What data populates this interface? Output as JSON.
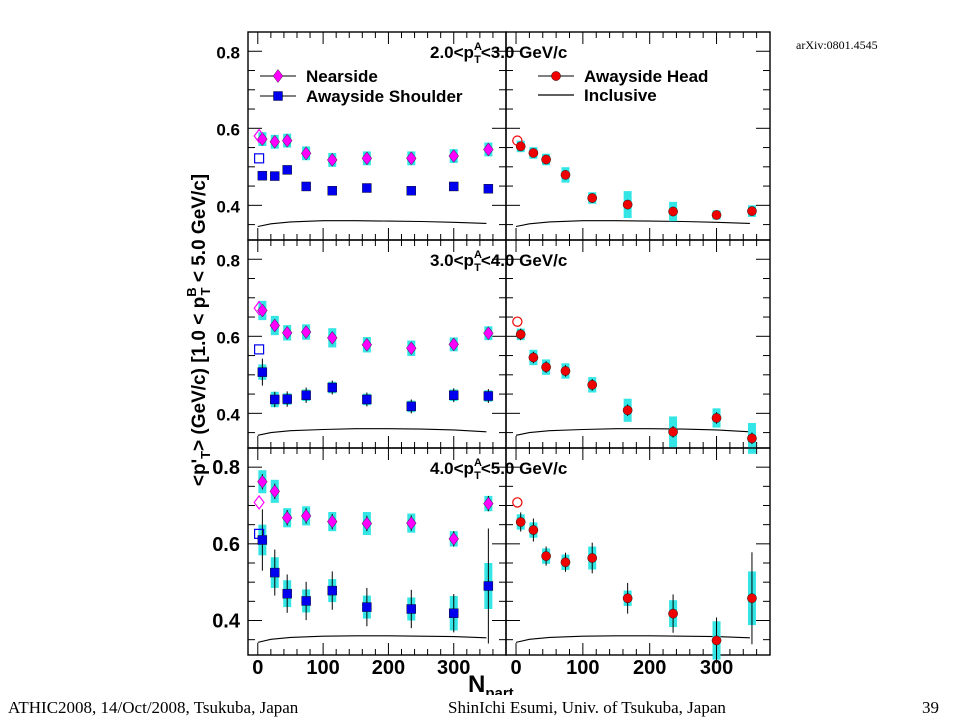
{
  "footer": {
    "left": "ATHIC2008, 14/Oct/2008, Tsukuba, Japan",
    "center": "ShinIchi Esumi, Univ. of Tsukuba, Japan",
    "page": "39"
  },
  "reference": "arXiv:0801.4545",
  "colors": {
    "nearside": "#ff00ff",
    "awayside_shoulder": "#0000ee",
    "awayside_head": "#ee0000",
    "systematic_band": "#33e5e5",
    "inclusive": "#000000"
  },
  "chart_data": {
    "type": "scatter",
    "ylabel": "<p'T> (GeV/c) [1.0 < pBT < 5.0 GeV/c]",
    "xlabel": "Npart",
    "xlim": [
      -15,
      380
    ],
    "x_ticks": [
      0,
      100,
      200,
      300
    ],
    "legend": {
      "left": [
        "Nearside",
        "Awayside Shoulder"
      ],
      "right": [
        "Awayside Head",
        "Inclusive"
      ]
    },
    "panels": [
      {
        "label": "2.0<pAT<3.0 GeV/c",
        "ylim": [
          0.31,
          0.85
        ],
        "y_ticks": [
          0.4,
          0.6,
          0.8
        ],
        "series": [
          {
            "name": "Nearside",
            "open": {
              "x": 2,
              "y": 0.58
            },
            "x": [
              7,
              26,
              45,
              74,
              114,
              167,
              235,
              300,
              353
            ],
            "y": [
              0.572,
              0.565,
              0.568,
              0.535,
              0.518,
              0.522,
              0.522,
              0.528,
              0.545
            ],
            "err": [
              0.012,
              0.012,
              0.012,
              0.012,
              0.012,
              0.012,
              0.012,
              0.012,
              0.012
            ],
            "sys": [
              0.018,
              0.018,
              0.018,
              0.018,
              0.018,
              0.018,
              0.018,
              0.018,
              0.018
            ]
          },
          {
            "name": "Awayside Shoulder",
            "open": {
              "x": 2,
              "y": 0.522
            },
            "x": [
              7,
              26,
              45,
              74,
              114,
              167,
              235,
              300,
              353
            ],
            "y": [
              0.477,
              0.476,
              0.492,
              0.449,
              0.438,
              0.445,
              0.438,
              0.449,
              0.443
            ],
            "err": [
              0.008,
              0.008,
              0.008,
              0.008,
              0.008,
              0.008,
              0.008,
              0.008,
              0.008
            ],
            "sys": [
              0.01,
              0.01,
              0.01,
              0.01,
              0.01,
              0.01,
              0.01,
              0.01,
              0.01
            ]
          },
          {
            "name": "Awayside Head",
            "open": {
              "x": 2,
              "y": 0.568
            },
            "x": [
              7,
              26,
              45,
              74,
              114,
              167,
              235,
              300,
              353
            ],
            "y": [
              0.553,
              0.536,
              0.519,
              0.479,
              0.419,
              0.402,
              0.384,
              0.375,
              0.385
            ],
            "err": [
              0.01,
              0.01,
              0.01,
              0.01,
              0.012,
              0.012,
              0.012,
              0.01,
              0.01
            ],
            "sys": [
              0.015,
              0.015,
              0.015,
              0.02,
              0.015,
              0.035,
              0.025,
              0.012,
              0.015
            ]
          }
        ],
        "inclusive": {
          "x": [
            0,
            20,
            50,
            100,
            150,
            200,
            250,
            300,
            350
          ],
          "y": [
            0.345,
            0.352,
            0.357,
            0.36,
            0.36,
            0.359,
            0.358,
            0.356,
            0.353
          ]
        }
      },
      {
        "label": "3.0<pAT<4.0 GeV/c",
        "ylim": [
          0.31,
          0.85
        ],
        "y_ticks": [
          0.4,
          0.6,
          0.8
        ],
        "series": [
          {
            "name": "Nearside",
            "open": {
              "x": 2,
              "y": 0.673
            },
            "x": [
              7,
              26,
              45,
              74,
              114,
              167,
              235,
              300,
              353
            ],
            "y": [
              0.667,
              0.628,
              0.609,
              0.611,
              0.596,
              0.578,
              0.569,
              0.579,
              0.608
            ],
            "err": [
              0.012,
              0.012,
              0.012,
              0.012,
              0.012,
              0.012,
              0.012,
              0.012,
              0.012
            ],
            "sys": [
              0.025,
              0.025,
              0.02,
              0.02,
              0.025,
              0.02,
              0.02,
              0.018,
              0.018
            ]
          },
          {
            "name": "Awayside Shoulder",
            "open": {
              "x": 2,
              "y": 0.566
            },
            "x": [
              7,
              26,
              45,
              74,
              114,
              167,
              235,
              300,
              353
            ],
            "y": [
              0.507,
              0.436,
              0.437,
              0.447,
              0.467,
              0.436,
              0.418,
              0.447,
              0.445
            ],
            "err": [
              0.035,
              0.02,
              0.02,
              0.02,
              0.018,
              0.018,
              0.018,
              0.018,
              0.018
            ],
            "sys": [
              0.02,
              0.02,
              0.015,
              0.015,
              0.015,
              0.015,
              0.015,
              0.015,
              0.015
            ]
          },
          {
            "name": "Awayside Head",
            "open": {
              "x": 2,
              "y": 0.638
            },
            "x": [
              7,
              26,
              45,
              74,
              114,
              167,
              235,
              300,
              353
            ],
            "y": [
              0.605,
              0.545,
              0.52,
              0.51,
              0.474,
              0.408,
              0.352,
              0.388,
              0.335
            ],
            "err": [
              0.015,
              0.015,
              0.015,
              0.015,
              0.015,
              0.015,
              0.015,
              0.015,
              0.015
            ],
            "sys": [
              0.015,
              0.02,
              0.02,
              0.02,
              0.02,
              0.03,
              0.04,
              0.025,
              0.04
            ]
          }
        ],
        "inclusive": {
          "x": [
            0,
            20,
            50,
            100,
            150,
            200,
            250,
            300,
            350
          ],
          "y": [
            0.343,
            0.35,
            0.355,
            0.358,
            0.36,
            0.36,
            0.359,
            0.357,
            0.352
          ]
        }
      },
      {
        "label": "4.0<pAT<5.0 GeV/c",
        "ylim": [
          0.31,
          0.85
        ],
        "y_ticks": [
          0.4,
          0.6,
          0.8
        ],
        "series": [
          {
            "name": "Nearside",
            "open": {
              "x": 2,
              "y": 0.708
            },
            "x": [
              7,
              26,
              45,
              74,
              114,
              167,
              235,
              300,
              353
            ],
            "y": [
              0.762,
              0.737,
              0.668,
              0.673,
              0.658,
              0.653,
              0.654,
              0.613,
              0.705
            ],
            "err": [
              0.02,
              0.02,
              0.02,
              0.02,
              0.02,
              0.02,
              0.02,
              0.02,
              0.02
            ],
            "sys": [
              0.03,
              0.03,
              0.025,
              0.025,
              0.025,
              0.03,
              0.025,
              0.02,
              0.02
            ]
          },
          {
            "name": "Awayside Shoulder",
            "open": {
              "x": 2,
              "y": 0.626
            },
            "x": [
              7,
              26,
              45,
              74,
              114,
              167,
              235,
              300,
              353
            ],
            "y": [
              0.61,
              0.525,
              0.47,
              0.451,
              0.478,
              0.435,
              0.43,
              0.419,
              0.49
            ],
            "err": [
              0.08,
              0.06,
              0.05,
              0.05,
              0.05,
              0.05,
              0.05,
              0.05,
              0.15
            ],
            "sys": [
              0.04,
              0.04,
              0.035,
              0.03,
              0.03,
              0.03,
              0.03,
              0.045,
              0.06
            ]
          },
          {
            "name": "Awayside Head",
            "open": {
              "x": 2,
              "y": 0.708
            },
            "x": [
              7,
              26,
              45,
              74,
              114,
              167,
              235,
              300,
              353
            ],
            "y": [
              0.657,
              0.636,
              0.568,
              0.552,
              0.563,
              0.458,
              0.418,
              0.348,
              0.458
            ],
            "err": [
              0.025,
              0.03,
              0.025,
              0.025,
              0.04,
              0.04,
              0.05,
              0.06,
              0.12
            ],
            "sys": [
              0.02,
              0.02,
              0.02,
              0.02,
              0.03,
              0.02,
              0.035,
              0.05,
              0.07
            ]
          }
        ],
        "inclusive": {
          "x": [
            0,
            20,
            50,
            100,
            150,
            200,
            250,
            300,
            350
          ],
          "y": [
            0.343,
            0.351,
            0.356,
            0.359,
            0.36,
            0.36,
            0.359,
            0.358,
            0.355
          ]
        }
      }
    ]
  }
}
